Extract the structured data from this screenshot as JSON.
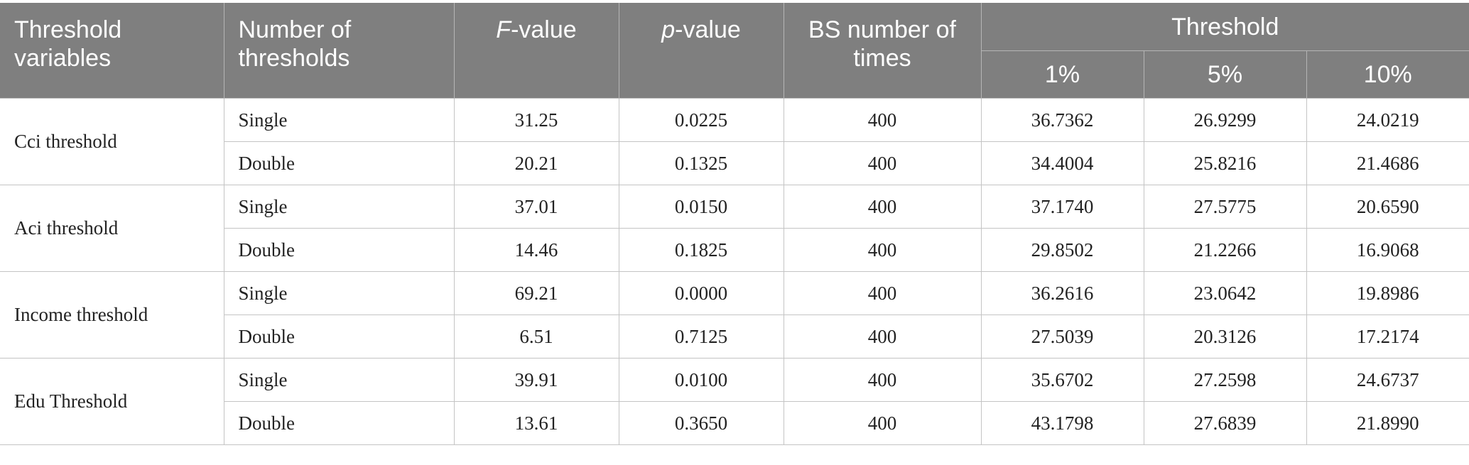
{
  "table": {
    "headers": {
      "threshold_variables": "Threshold variables",
      "number_of_thresholds": "Number of thresholds",
      "f_value_italic": "F",
      "f_value_rest": "-value",
      "p_value_italic": "p",
      "p_value_rest": "-value",
      "bs_number": "BS number of times",
      "threshold_group": "Threshold",
      "pct_1": "1%",
      "pct_5": "5%",
      "pct_10": "10%"
    },
    "groups": [
      {
        "variable": "Cci threshold",
        "rows": [
          {
            "type": "Single",
            "f": "31.25",
            "p": "0.0225",
            "bs": "400",
            "t1": "36.7362",
            "t5": "26.9299",
            "t10": "24.0219"
          },
          {
            "type": "Double",
            "f": "20.21",
            "p": "0.1325",
            "bs": "400",
            "t1": "34.4004",
            "t5": "25.8216",
            "t10": "21.4686"
          }
        ]
      },
      {
        "variable": "Aci threshold",
        "rows": [
          {
            "type": "Single",
            "f": "37.01",
            "p": "0.0150",
            "bs": "400",
            "t1": "37.1740",
            "t5": "27.5775",
            "t10": "20.6590"
          },
          {
            "type": "Double",
            "f": "14.46",
            "p": "0.1825",
            "bs": "400",
            "t1": "29.8502",
            "t5": "21.2266",
            "t10": "16.9068"
          }
        ]
      },
      {
        "variable": "Income threshold",
        "rows": [
          {
            "type": "Single",
            "f": "69.21",
            "p": "0.0000",
            "bs": "400",
            "t1": "36.2616",
            "t5": "23.0642",
            "t10": "19.8986"
          },
          {
            "type": "Double",
            "f": "6.51",
            "p": "0.7125",
            "bs": "400",
            "t1": "27.5039",
            "t5": "20.3126",
            "t10": "17.2174"
          }
        ]
      },
      {
        "variable": "Edu Threshold",
        "rows": [
          {
            "type": "Single",
            "f": "39.91",
            "p": "0.0100",
            "bs": "400",
            "t1": "35.6702",
            "t5": "27.2598",
            "t10": "24.6737"
          },
          {
            "type": "Double",
            "f": "13.61",
            "p": "0.3650",
            "bs": "400",
            "t1": "43.1798",
            "t5": "27.6839",
            "t10": "21.8990"
          }
        ]
      }
    ]
  }
}
